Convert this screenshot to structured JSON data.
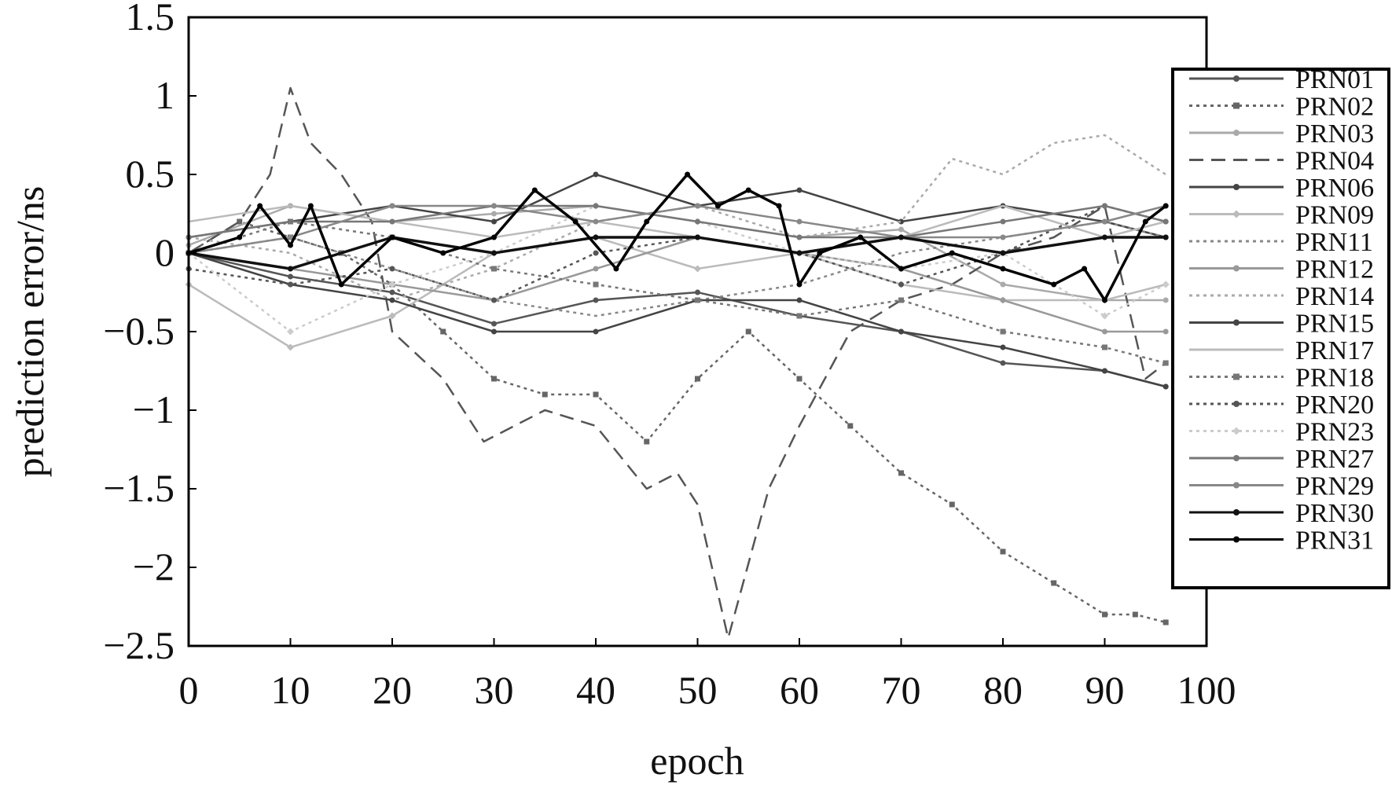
{
  "chart_data": {
    "type": "line",
    "title": "",
    "xlabel": "epoch",
    "ylabel": "prediction error/ns",
    "xlim": [
      0,
      100
    ],
    "ylim": [
      -2.5,
      1.5
    ],
    "xticks": [
      0,
      10,
      20,
      30,
      40,
      50,
      60,
      70,
      80,
      90,
      100
    ],
    "xtick_labels": [
      "0",
      "10",
      "20",
      "30",
      "40",
      "50",
      "60",
      "70",
      "80",
      "90",
      "100"
    ],
    "yticks": [
      1.5,
      1,
      0.5,
      0,
      -0.5,
      -1,
      -1.5,
      -2,
      -2.5
    ],
    "ytick_labels": [
      "1.5",
      "1",
      "0.5",
      "0",
      "−0.5",
      "−1",
      "−1.5",
      "−2",
      "−2.5"
    ],
    "grid": false,
    "legend_position": "right",
    "series": [
      {
        "name": "PRN01",
        "color": "#555555",
        "style": "solid",
        "marker": "dot",
        "x": [
          0,
          10,
          20,
          30,
          40,
          50,
          60,
          70,
          80,
          90,
          96
        ],
        "y": [
          0,
          -0.15,
          -0.25,
          -0.45,
          -0.3,
          -0.25,
          -0.4,
          -0.5,
          -0.7,
          -0.75,
          -0.85
        ]
      },
      {
        "name": "PRN02",
        "color": "#666666",
        "style": "dotted",
        "marker": "square",
        "x": [
          0,
          5,
          10,
          15,
          20,
          25,
          30,
          35,
          40,
          45,
          50,
          55,
          60,
          65,
          70,
          75,
          80,
          85,
          90,
          93,
          96
        ],
        "y": [
          0,
          0.2,
          0.1,
          0,
          -0.2,
          -0.5,
          -0.8,
          -0.9,
          -0.9,
          -1.2,
          -0.8,
          -0.5,
          -0.8,
          -1.1,
          -1.4,
          -1.6,
          -1.9,
          -2.1,
          -2.3,
          -2.3,
          -2.35
        ]
      },
      {
        "name": "PRN03",
        "color": "#aaaaaa",
        "style": "solid",
        "marker": "dot",
        "x": [
          0,
          10,
          20,
          30,
          40,
          50,
          60,
          70,
          80,
          90,
          96
        ],
        "y": [
          0.05,
          0.3,
          0.2,
          0.25,
          0.3,
          0.2,
          0.1,
          0.15,
          -0.2,
          -0.3,
          -0.3
        ]
      },
      {
        "name": "PRN04",
        "color": "#555555",
        "style": "dashed",
        "marker": "none",
        "x": [
          0,
          5,
          8,
          10,
          12,
          15,
          18,
          20,
          25,
          29,
          35,
          40,
          45,
          48,
          50,
          53,
          57,
          60,
          65,
          70,
          75,
          80,
          85,
          90,
          94,
          96
        ],
        "y": [
          0,
          0.2,
          0.5,
          1.05,
          0.7,
          0.5,
          0.2,
          -0.5,
          -0.8,
          -1.2,
          -1.0,
          -1.1,
          -1.5,
          -1.4,
          -1.6,
          -2.45,
          -1.5,
          -1.1,
          -0.5,
          -0.3,
          -0.2,
          0,
          0.1,
          0.3,
          -0.8,
          -0.7
        ]
      },
      {
        "name": "PRN06",
        "color": "#444444",
        "style": "solid",
        "marker": "dot",
        "x": [
          0,
          10,
          20,
          30,
          40,
          50,
          60,
          70,
          80,
          90,
          96
        ],
        "y": [
          0.1,
          0.2,
          0.3,
          0.2,
          0.5,
          0.3,
          0.4,
          0.2,
          0.3,
          0.2,
          0.1
        ]
      },
      {
        "name": "PRN09",
        "color": "#bbbbbb",
        "style": "solid",
        "marker": "diamond",
        "x": [
          0,
          10,
          20,
          30,
          40,
          50,
          60,
          70,
          80,
          90,
          96
        ],
        "y": [
          -0.2,
          -0.6,
          -0.4,
          0,
          0.1,
          -0.1,
          0,
          -0.2,
          -0.3,
          -0.3,
          -0.2
        ]
      },
      {
        "name": "PRN11",
        "color": "#888888",
        "style": "dotted",
        "marker": "none",
        "x": [
          0,
          10,
          20,
          30,
          40,
          50,
          60,
          70,
          80,
          90,
          96
        ],
        "y": [
          0,
          0.1,
          -0.1,
          -0.3,
          -0.4,
          -0.3,
          -0.2,
          0,
          0.1,
          0.2,
          0.1
        ]
      },
      {
        "name": "PRN12",
        "color": "#999999",
        "style": "solid",
        "marker": "dot",
        "x": [
          0,
          10,
          20,
          30,
          40,
          50,
          60,
          70,
          80,
          90,
          96
        ],
        "y": [
          0,
          -0.1,
          -0.2,
          -0.3,
          -0.1,
          0.1,
          0,
          -0.1,
          -0.3,
          -0.5,
          -0.5
        ]
      },
      {
        "name": "PRN14",
        "color": "#aaaaaa",
        "style": "dotted",
        "marker": "none",
        "x": [
          0,
          10,
          20,
          30,
          40,
          50,
          60,
          70,
          75,
          80,
          85,
          90,
          96
        ],
        "y": [
          0.1,
          0,
          -0.3,
          -0.1,
          0.2,
          0.3,
          0.1,
          0.2,
          0.6,
          0.5,
          0.7,
          0.75,
          0.5
        ]
      },
      {
        "name": "PRN15",
        "color": "#444444",
        "style": "solid",
        "marker": "dot",
        "x": [
          0,
          10,
          20,
          30,
          40,
          50,
          60,
          70,
          80,
          90,
          96
        ],
        "y": [
          0,
          -0.2,
          -0.3,
          -0.5,
          -0.5,
          -0.3,
          -0.3,
          -0.5,
          -0.6,
          -0.75,
          -0.85
        ]
      },
      {
        "name": "PRN17",
        "color": "#bbbbbb",
        "style": "solid",
        "marker": "none",
        "x": [
          0,
          10,
          20,
          30,
          40,
          50,
          60,
          70,
          80,
          90,
          96
        ],
        "y": [
          0.2,
          0.3,
          0.2,
          0.1,
          0.2,
          0.1,
          0,
          0.1,
          0.3,
          0.1,
          0.2
        ]
      },
      {
        "name": "PRN18",
        "color": "#777777",
        "style": "dotted",
        "marker": "square",
        "x": [
          0,
          10,
          20,
          30,
          40,
          50,
          60,
          70,
          80,
          90,
          96
        ],
        "y": [
          0,
          0.2,
          0.1,
          -0.1,
          -0.2,
          -0.3,
          -0.4,
          -0.3,
          -0.5,
          -0.6,
          -0.7
        ]
      },
      {
        "name": "PRN20",
        "color": "#555555",
        "style": "dotted",
        "marker": "dot",
        "x": [
          0,
          10,
          20,
          30,
          40,
          50,
          60,
          70,
          80,
          90,
          96
        ],
        "y": [
          -0.1,
          -0.2,
          -0.1,
          -0.3,
          0,
          0.1,
          0,
          -0.2,
          0,
          0.3,
          0.2
        ]
      },
      {
        "name": "PRN23",
        "color": "#cccccc",
        "style": "dotted",
        "marker": "diamond",
        "x": [
          0,
          10,
          20,
          30,
          40,
          50,
          60,
          70,
          80,
          90,
          96
        ],
        "y": [
          0,
          -0.5,
          -0.2,
          0,
          0.3,
          0.2,
          0,
          -0.1,
          0,
          -0.4,
          -0.2
        ]
      },
      {
        "name": "PRN27",
        "color": "#777777",
        "style": "solid",
        "marker": "dot",
        "x": [
          0,
          10,
          20,
          30,
          40,
          50,
          60,
          70,
          80,
          90,
          96
        ],
        "y": [
          0.1,
          0.2,
          0.2,
          0.3,
          0.3,
          0.2,
          0.1,
          0.1,
          0.2,
          0.3,
          0.2
        ]
      },
      {
        "name": "PRN29",
        "color": "#888888",
        "style": "solid",
        "marker": "dot",
        "x": [
          0,
          10,
          20,
          30,
          40,
          50,
          60,
          70,
          80,
          90,
          96
        ],
        "y": [
          0,
          0.1,
          0.3,
          0.3,
          0.2,
          0.3,
          0.2,
          0.1,
          0.1,
          0.2,
          0.3
        ]
      },
      {
        "name": "PRN30",
        "color": "#111111",
        "style": "solid",
        "marker": "dot",
        "x": [
          0,
          10,
          20,
          30,
          40,
          50,
          60,
          70,
          80,
          90,
          96
        ],
        "y": [
          0,
          -0.1,
          0.1,
          0,
          0.1,
          0.1,
          0,
          0.1,
          0,
          0.1,
          0.1
        ]
      },
      {
        "name": "PRN31",
        "color": "#000000",
        "style": "solid",
        "marker": "dot",
        "x": [
          0,
          5,
          7,
          10,
          12,
          15,
          20,
          25,
          30,
          34,
          38,
          42,
          45,
          49,
          52,
          55,
          58,
          60,
          62,
          66,
          70,
          75,
          80,
          85,
          88,
          90,
          94,
          96
        ],
        "y": [
          0,
          0.1,
          0.3,
          0.05,
          0.3,
          -0.2,
          0.1,
          0,
          0.1,
          0.4,
          0.2,
          -0.1,
          0.2,
          0.5,
          0.3,
          0.4,
          0.3,
          -0.2,
          0,
          0.1,
          -0.1,
          0,
          -0.1,
          -0.2,
          -0.1,
          -0.3,
          0.2,
          0.3
        ]
      }
    ]
  }
}
